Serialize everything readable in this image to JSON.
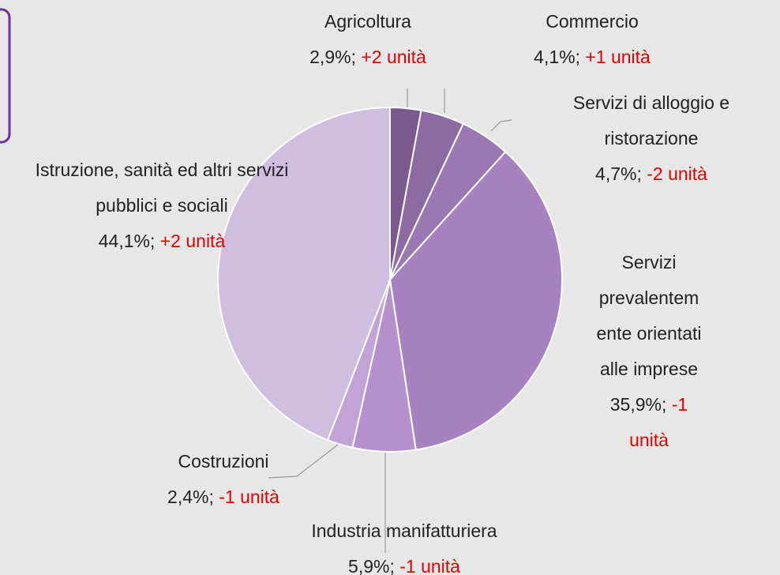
{
  "chart_data": {
    "type": "pie",
    "categories": [
      "Agricoltura",
      "Commercio",
      "Servizi di alloggio e ristorazione",
      "Servizi prevalentemente orientati alle imprese",
      "Industria manifatturiera",
      "Costruzioni",
      "Istruzione, sanità ed altri servizi pubblici e sociali"
    ],
    "values": [
      2.9,
      4.1,
      4.7,
      35.9,
      5.9,
      2.4,
      44.1
    ],
    "value_labels": [
      "2,9%;",
      "4,1%;",
      "4,7%;",
      "35,9%;",
      "5,9%;",
      "2,4%;",
      "44,1%;"
    ],
    "changes": [
      "+2 unità",
      "+1 unità",
      "-2 unità",
      "-1 unità",
      "-1 unità",
      "-1 unità",
      "+2 unità"
    ],
    "colors": [
      "#7a5a8c",
      "#8b6ba0",
      "#9a79b2",
      "#a782c0",
      "#b491cc",
      "#c2a3d6",
      "#d0bee0"
    ]
  }
}
